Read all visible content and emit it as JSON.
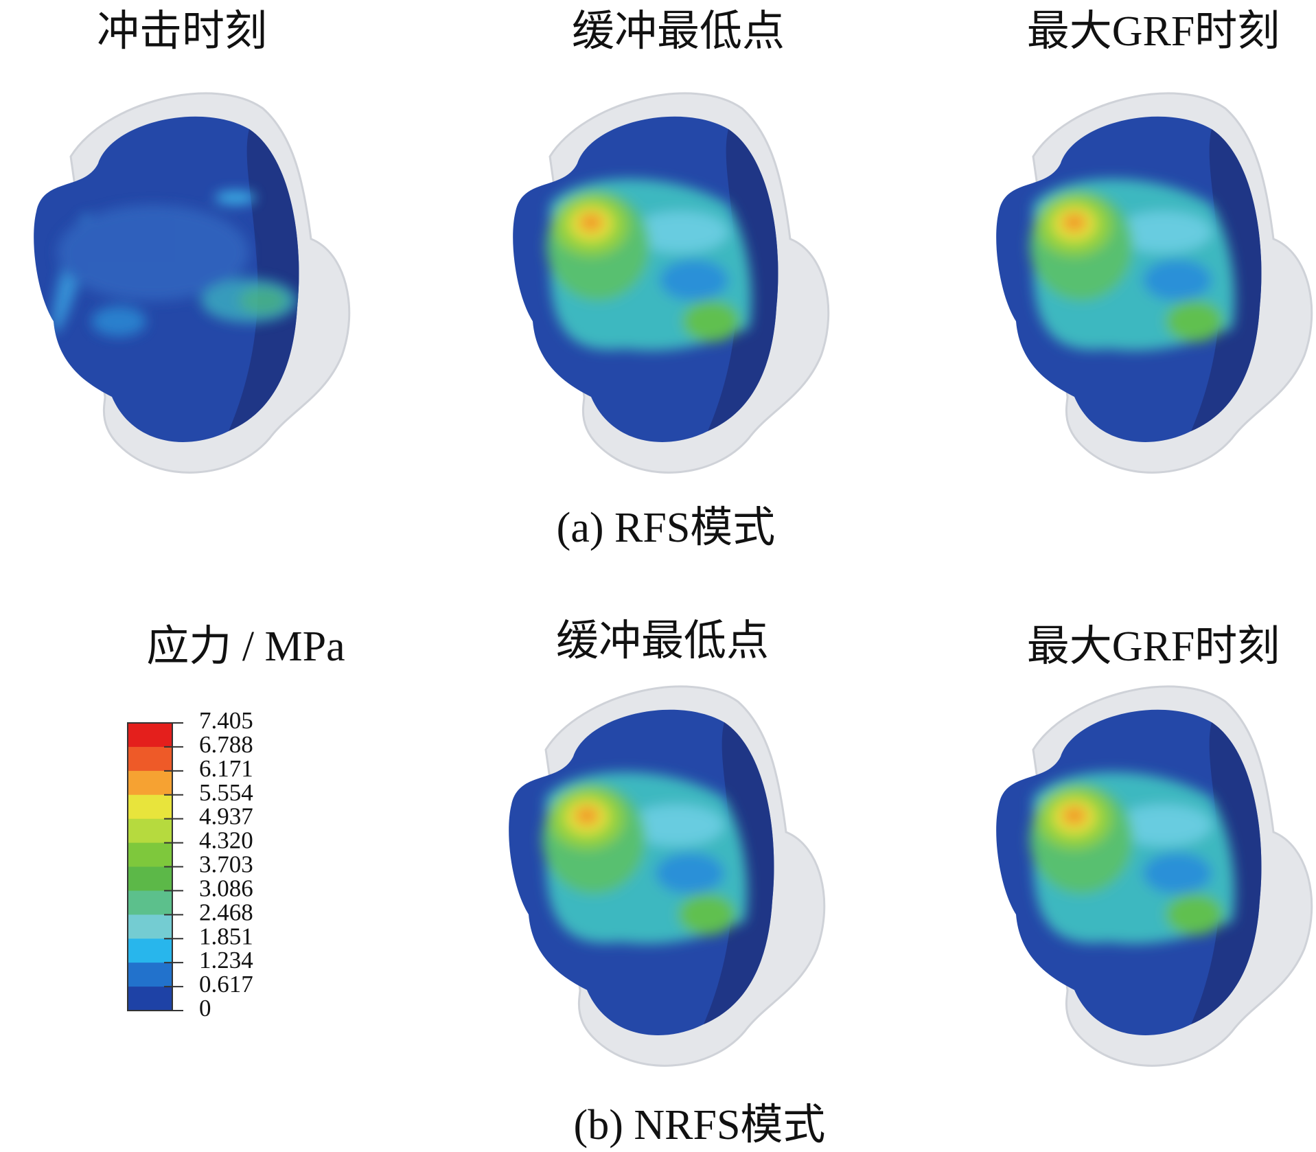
{
  "panels_a": {
    "titles": [
      "冲击时刻",
      "缓冲最低点",
      "最大GRF时刻"
    ],
    "caption": "(a)  RFS模式"
  },
  "panels_b": {
    "titles": [
      "缓冲最低点",
      "最大GRF时刻"
    ],
    "caption": "(b)  NRFS模式"
  },
  "legend": {
    "title": "应力 / MPa",
    "ticks": [
      "7.405",
      "6.788",
      "6.171",
      "5.554",
      "4.937",
      "4.320",
      "3.703",
      "3.086",
      "2.468",
      "1.851",
      "1.234",
      "0.617",
      "0"
    ],
    "colors": [
      "#e41f1c",
      "#ee5a28",
      "#f6a232",
      "#e8e43c",
      "#b6da3e",
      "#7ec83c",
      "#5cb848",
      "#5cc08c",
      "#74ccd2",
      "#28b6ec",
      "#2272cc",
      "#1e42a6"
    ]
  }
}
